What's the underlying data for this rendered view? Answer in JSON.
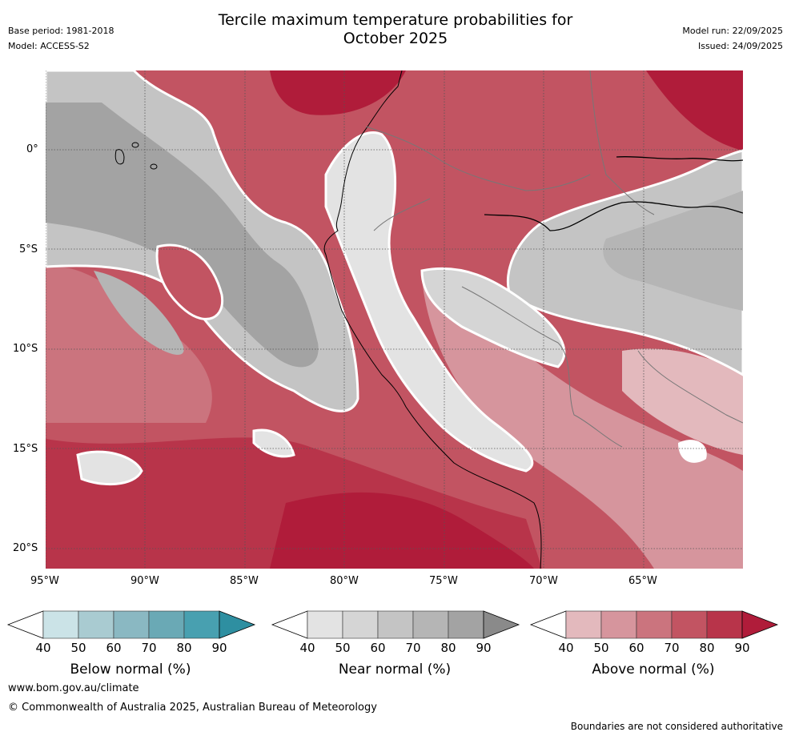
{
  "header": {
    "title_line1": "Tercile maximum temperature probabilities for",
    "title_line2": "October 2025",
    "base_period": "Base period: 1981-2018",
    "model": "Model: ACCESS-S2",
    "model_run": "Model run: 22/09/2025",
    "issued": "Issued: 24/09/2025"
  },
  "map": {
    "lat_labels": [
      "0°",
      "5°S",
      "10°S",
      "15°S",
      "20°S"
    ],
    "lon_labels": [
      "95°W",
      "90°W",
      "85°W",
      "80°W",
      "75°W",
      "70°W",
      "65°W"
    ]
  },
  "colorbars": [
    {
      "name": "Below normal (%)",
      "ticks": [
        "40",
        "50",
        "60",
        "70",
        "80",
        "90"
      ],
      "colors": [
        "#ffffff",
        "#cbe3e7",
        "#a9cbd1",
        "#8ab8c2",
        "#6aa9b5",
        "#48a0b0",
        "#2e8fa1"
      ]
    },
    {
      "name": "Near normal (%)",
      "ticks": [
        "40",
        "50",
        "60",
        "70",
        "80",
        "90"
      ],
      "colors": [
        "#ffffff",
        "#e3e3e3",
        "#d5d5d5",
        "#c4c4c4",
        "#b5b5b5",
        "#a3a3a3",
        "#8a8a8a"
      ]
    },
    {
      "name": "Above normal (%)",
      "ticks": [
        "40",
        "50",
        "60",
        "70",
        "80",
        "90"
      ],
      "colors": [
        "#ffffff",
        "#e3b9bd",
        "#d6959d",
        "#cb747e",
        "#c25462",
        "#b8344a",
        "#b01c3a"
      ]
    }
  ],
  "footer": {
    "website": "www.bom.gov.au/climate",
    "copyright": "© Commonwealth of Australia 2025, Australian Bureau of Meteorology",
    "disclaimer": "Boundaries are not considered authoritative"
  }
}
